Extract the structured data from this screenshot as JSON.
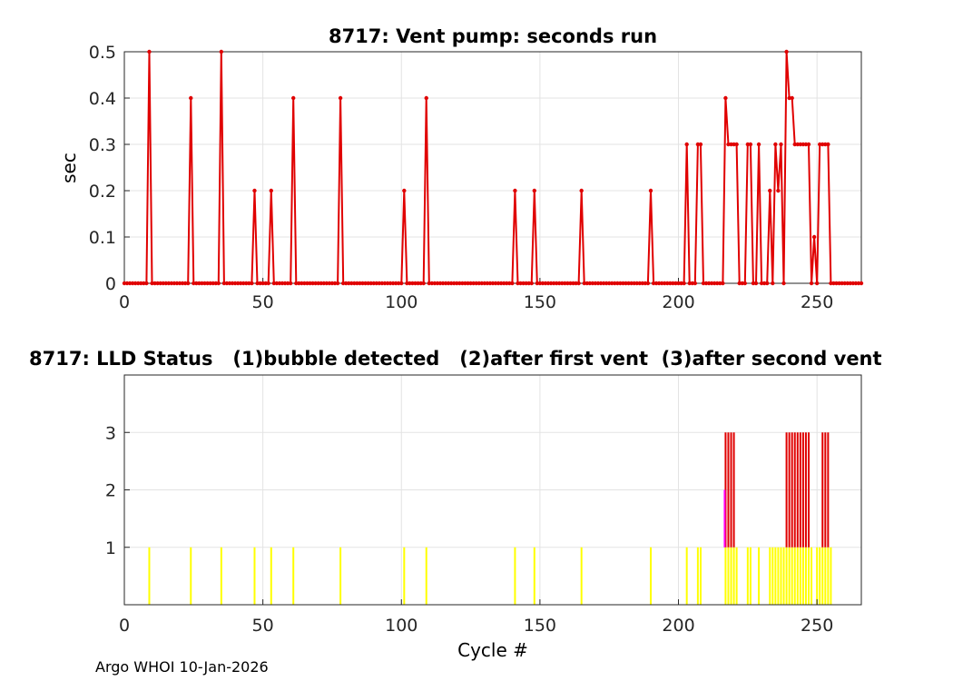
{
  "footer": "Argo WHOI 10-Jan-2026",
  "chart_data": [
    {
      "type": "line",
      "title": "8717: Vent pump: seconds run",
      "xlabel": "",
      "ylabel": "sec",
      "xlim": [
        0,
        266
      ],
      "ylim": [
        0,
        0.5
      ],
      "xticks": [
        0,
        50,
        100,
        150,
        200,
        250
      ],
      "yticks": [
        0,
        0.1,
        0.2,
        0.3,
        0.4,
        0.5
      ],
      "ytick_labels": [
        "0",
        "0.1",
        "0.2",
        "0.3",
        "0.4",
        "0.5"
      ],
      "grid": true,
      "color": "#e00000",
      "n_cycles": 266,
      "points": [
        [
          9,
          0.5
        ],
        [
          24,
          0.4
        ],
        [
          35,
          0.5
        ],
        [
          47,
          0.2
        ],
        [
          53,
          0.2
        ],
        [
          61,
          0.4
        ],
        [
          78,
          0.4
        ],
        [
          101,
          0.2
        ],
        [
          109,
          0.4
        ],
        [
          141,
          0.2
        ],
        [
          148,
          0.2
        ],
        [
          165,
          0.2
        ],
        [
          190,
          0.2
        ],
        [
          203,
          0.3
        ],
        [
          207,
          0.3
        ],
        [
          208,
          0.3
        ],
        [
          217,
          0.4
        ],
        [
          218,
          0.3
        ],
        [
          219,
          0.3
        ],
        [
          220,
          0.3
        ],
        [
          221,
          0.3
        ],
        [
          225,
          0.3
        ],
        [
          226,
          0.3
        ],
        [
          229,
          0.3
        ],
        [
          233,
          0.2
        ],
        [
          235,
          0.3
        ],
        [
          236,
          0.2
        ],
        [
          237,
          0.3
        ],
        [
          239,
          0.5
        ],
        [
          240,
          0.4
        ],
        [
          241,
          0.4
        ],
        [
          242,
          0.3
        ],
        [
          243,
          0.3
        ],
        [
          244,
          0.3
        ],
        [
          245,
          0.3
        ],
        [
          246,
          0.3
        ],
        [
          247,
          0.3
        ],
        [
          249,
          0.1
        ],
        [
          251,
          0.3
        ],
        [
          252,
          0.3
        ],
        [
          253,
          0.3
        ],
        [
          254,
          0.3
        ]
      ]
    },
    {
      "type": "bar",
      "title": "8717: LLD Status   (1)bubble detected   (2)after first vent  (3)after second vent",
      "xlabel": "Cycle #",
      "ylabel": "",
      "xlim": [
        0,
        266
      ],
      "ylim": [
        0,
        4
      ],
      "xticks": [
        0,
        50,
        100,
        150,
        200,
        250
      ],
      "yticks": [
        1,
        2,
        3
      ],
      "grid": true,
      "colors": {
        "1": "#ffff00",
        "2": "#ff00ff",
        "3": "#e00000"
      },
      "status": [
        [
          9,
          1
        ],
        [
          24,
          1
        ],
        [
          35,
          1
        ],
        [
          47,
          1
        ],
        [
          53,
          1
        ],
        [
          61,
          1
        ],
        [
          78,
          1
        ],
        [
          101,
          1
        ],
        [
          109,
          1
        ],
        [
          141,
          1
        ],
        [
          148,
          1
        ],
        [
          165,
          1
        ],
        [
          190,
          1
        ],
        [
          203,
          1
        ],
        [
          207,
          1
        ],
        [
          208,
          1
        ],
        [
          217,
          3
        ],
        [
          218,
          3
        ],
        [
          219,
          3
        ],
        [
          220,
          3
        ],
        [
          221,
          1
        ],
        [
          225,
          1
        ],
        [
          226,
          1
        ],
        [
          229,
          1
        ],
        [
          233,
          1
        ],
        [
          234,
          1
        ],
        [
          235,
          1
        ],
        [
          236,
          1
        ],
        [
          237,
          1
        ],
        [
          238,
          1
        ],
        [
          239,
          3
        ],
        [
          240,
          3
        ],
        [
          241,
          3
        ],
        [
          242,
          3
        ],
        [
          243,
          3
        ],
        [
          244,
          3
        ],
        [
          245,
          3
        ],
        [
          246,
          3
        ],
        [
          247,
          3
        ],
        [
          248,
          1
        ],
        [
          250,
          1
        ],
        [
          251,
          1
        ],
        [
          252,
          3
        ],
        [
          253,
          3
        ],
        [
          254,
          3
        ],
        [
          255,
          1
        ]
      ],
      "transitional": [
        [
          217,
          2
        ]
      ]
    }
  ]
}
